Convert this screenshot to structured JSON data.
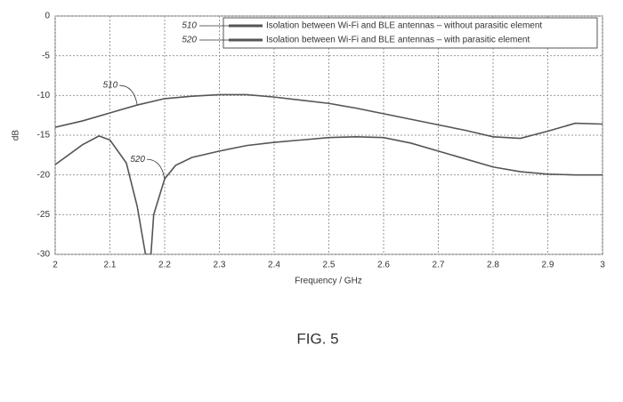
{
  "chart_data": {
    "type": "line",
    "title": "FIG. 5",
    "x_label": "Frequency / GHz",
    "y_label": "dB",
    "xlim": [
      2,
      3
    ],
    "ylim": [
      -30,
      0
    ],
    "xticks": [
      2,
      2.1,
      2.2,
      2.3,
      2.4,
      2.5,
      2.6,
      2.7,
      2.8,
      2.9,
      3
    ],
    "yticks": [
      0,
      -5,
      -10,
      -15,
      -20,
      -25,
      -30
    ],
    "grid": true,
    "legend": "top-right",
    "series": [
      {
        "name": "Isolation between Wi-Fi and BLE antennas – without parasitic element",
        "ref": "510",
        "color": "#555555",
        "x": [
          2,
          2.05,
          2.1,
          2.15,
          2.2,
          2.25,
          2.3,
          2.35,
          2.4,
          2.45,
          2.5,
          2.55,
          2.6,
          2.65,
          2.7,
          2.75,
          2.8,
          2.85,
          2.9,
          2.95,
          3
        ],
        "values": [
          -14,
          -13.2,
          -12.2,
          -11.2,
          -10.4,
          -10.1,
          -9.9,
          -9.9,
          -10.2,
          -10.6,
          -11,
          -11.6,
          -12.3,
          -13,
          -13.7,
          -14.4,
          -15.2,
          -15.4,
          -14.5,
          -13.5,
          -13.6
        ]
      },
      {
        "name": "Isolation between Wi-Fi and BLE antennas – with parasitic element",
        "ref": "520",
        "color": "#555555",
        "x": [
          2,
          2.05,
          2.08,
          2.1,
          2.13,
          2.15,
          2.16,
          2.165,
          2.175,
          2.18,
          2.2,
          2.22,
          2.25,
          2.3,
          2.35,
          2.4,
          2.45,
          2.5,
          2.55,
          2.6,
          2.65,
          2.7,
          2.75,
          2.8,
          2.85,
          2.9,
          2.95,
          3
        ],
        "values": [
          -18.7,
          -16.2,
          -15.1,
          -15.6,
          -18.5,
          -24,
          -28,
          -30,
          -30,
          -25,
          -20.5,
          -18.8,
          -17.8,
          -17,
          -16.3,
          -15.9,
          -15.6,
          -15.3,
          -15.2,
          -15.3,
          -16,
          -17,
          -18,
          -19,
          -19.6,
          -19.9,
          -20,
          -20
        ]
      }
    ]
  }
}
